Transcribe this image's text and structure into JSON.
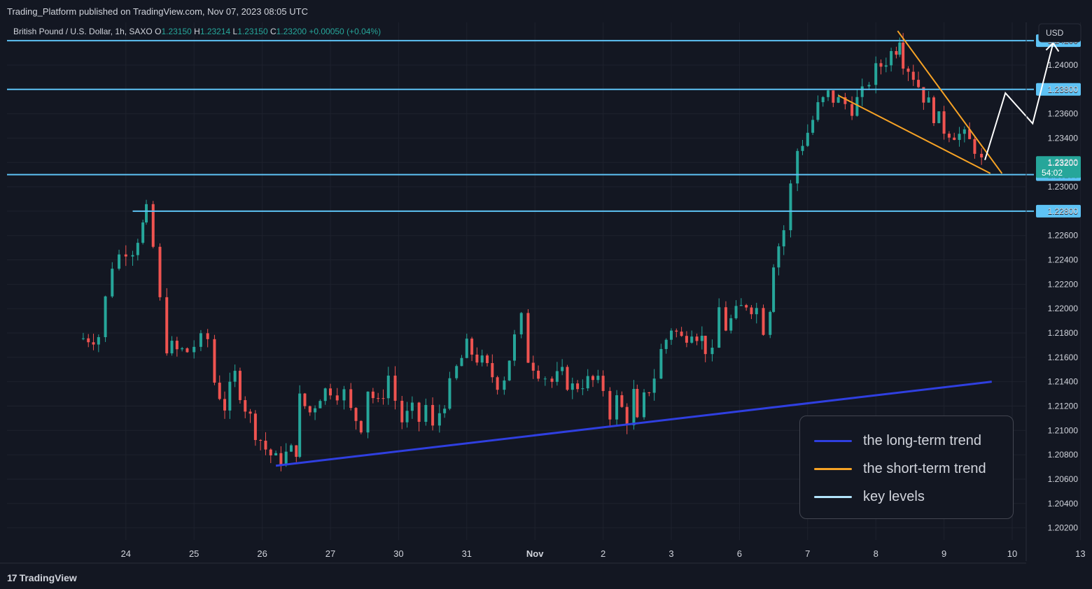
{
  "header": {
    "published": "Trading_Platform published on TradingView.com, Nov 07, 2023 08:05 UTC"
  },
  "symbol_bar": {
    "symbol": "British Pound / U.S. Dollar, 1h, SAXO",
    "o_label": "O",
    "o_value": "1.23150",
    "h_label": "H",
    "h_value": "1.23214",
    "l_label": "L",
    "l_value": "1.23150",
    "c_label": "C",
    "c_value": "1.23200",
    "change": "+0.00050 (+0.04%)"
  },
  "currency_button": "USD",
  "footer": {
    "brand": "TradingView",
    "logo_mark": "17"
  },
  "colors": {
    "background": "#131722",
    "grid": "#1e222d",
    "up": "#26a69a",
    "down": "#ef5350",
    "long_trend": "#2f3fe0",
    "short_trend": "#f7a325",
    "key_level": "#5ec3f5",
    "projection": "#ffffff",
    "text": "#d1d4dc"
  },
  "chart_data": {
    "type": "candlestick",
    "symbol": "GBPUSD",
    "timeframe": "1h",
    "y_axis": {
      "min": 1.201,
      "max": 1.2435,
      "ticks": [
        "1.20200",
        "1.20400",
        "1.20600",
        "1.20800",
        "1.21000",
        "1.21200",
        "1.21400",
        "1.21600",
        "1.21800",
        "1.22000",
        "1.22200",
        "1.22400",
        "1.22600",
        "1.22800",
        "1.23000",
        "1.23200",
        "1.23400",
        "1.23600",
        "1.23800",
        "1.24000",
        "1.24200"
      ]
    },
    "x_axis": {
      "ticks": [
        "24",
        "25",
        "26",
        "27",
        "30",
        "31",
        "Nov",
        "2",
        "3",
        "6",
        "7",
        "8",
        "9",
        "10",
        "13"
      ],
      "bold_ticks": [
        "Nov"
      ]
    },
    "price_path": [
      [
        23.3,
        1.2175
      ],
      [
        23.6,
        1.2178
      ],
      [
        23.8,
        1.2237
      ],
      [
        24.0,
        1.225
      ],
      [
        24.1,
        1.225
      ],
      [
        24.25,
        1.2268
      ],
      [
        24.3,
        1.2278
      ],
      [
        24.4,
        1.225
      ],
      [
        24.5,
        1.2205
      ],
      [
        24.6,
        1.217
      ],
      [
        24.75,
        1.2165
      ],
      [
        24.9,
        1.2165
      ],
      [
        25.0,
        1.217
      ],
      [
        25.2,
        1.2175
      ],
      [
        25.3,
        1.214
      ],
      [
        25.45,
        1.212
      ],
      [
        25.6,
        1.2145
      ],
      [
        25.75,
        1.212
      ],
      [
        25.9,
        1.21
      ],
      [
        26.05,
        1.2085
      ],
      [
        26.2,
        1.2075
      ],
      [
        26.35,
        1.208
      ],
      [
        26.5,
        1.2085
      ],
      [
        26.55,
        1.2125
      ],
      [
        26.7,
        1.2115
      ],
      [
        26.85,
        1.213
      ],
      [
        27.0,
        1.2135
      ],
      [
        27.2,
        1.213
      ],
      [
        27.3,
        1.2115
      ],
      [
        27.45,
        1.2105
      ],
      [
        27.55,
        1.2135
      ],
      [
        27.7,
        1.212
      ],
      [
        27.85,
        1.2145
      ],
      [
        27.95,
        1.2125
      ],
      [
        28.05,
        1.2108
      ],
      [
        28.2,
        1.2115
      ],
      [
        28.3,
        1.2108
      ],
      [
        28.4,
        1.212
      ],
      [
        28.5,
        1.21
      ],
      [
        28.6,
        1.2115
      ],
      [
        28.75,
        1.2135
      ],
      [
        28.85,
        1.215
      ],
      [
        29.0,
        1.2168
      ],
      [
        29.15,
        1.216
      ],
      [
        29.3,
        1.215
      ],
      [
        29.45,
        1.214
      ],
      [
        29.55,
        1.2145
      ],
      [
        29.7,
        1.2175
      ],
      [
        29.8,
        1.219
      ],
      [
        29.9,
        1.216
      ],
      [
        30.05,
        1.215
      ],
      [
        30.25,
        1.214
      ],
      [
        30.4,
        1.2145
      ],
      [
        30.55,
        1.2135
      ],
      [
        30.7,
        1.214
      ],
      [
        30.85,
        1.214
      ],
      [
        31.0,
        1.2135
      ],
      [
        31.1,
        1.2115
      ],
      [
        31.2,
        1.2125
      ],
      [
        31.35,
        1.211
      ],
      [
        31.45,
        1.213
      ],
      [
        31.5,
        1.2105
      ],
      [
        31.6,
        1.2125
      ],
      [
        31.75,
        1.2145
      ],
      [
        31.85,
        1.2165
      ],
      [
        32.0,
        1.2185
      ],
      [
        32.15,
        1.2175
      ],
      [
        32.3,
        1.2185
      ],
      [
        32.45,
        1.2175
      ],
      [
        32.5,
        1.2168
      ],
      [
        32.6,
        1.216
      ],
      [
        32.7,
        1.22
      ],
      [
        32.8,
        1.2185
      ],
      [
        32.95,
        1.2195
      ],
      [
        33.1,
        1.2205
      ],
      [
        33.25,
        1.22
      ],
      [
        33.35,
        1.2185
      ],
      [
        33.45,
        1.2203
      ],
      [
        33.5,
        1.224
      ],
      [
        33.65,
        1.2265
      ],
      [
        33.75,
        1.23
      ],
      [
        33.85,
        1.233
      ],
      [
        34.0,
        1.2345
      ],
      [
        34.15,
        1.2365
      ],
      [
        34.3,
        1.2375
      ],
      [
        34.45,
        1.237
      ],
      [
        34.65,
        1.2366
      ],
      [
        34.8,
        1.2375
      ],
      [
        34.9,
        1.2388
      ],
      [
        35.0,
        1.2395
      ],
      [
        35.15,
        1.2405
      ],
      [
        35.3,
        1.2415
      ],
      [
        35.35,
        1.2425
      ],
      [
        35.4,
        1.2405
      ],
      [
        35.55,
        1.2392
      ],
      [
        35.7,
        1.2375
      ],
      [
        35.85,
        1.236
      ],
      [
        36.0,
        1.2348
      ],
      [
        36.15,
        1.2345
      ],
      [
        36.3,
        1.234
      ],
      [
        36.45,
        1.2333
      ],
      [
        36.55,
        1.232
      ]
    ],
    "key_levels": [
      {
        "price": 1.242,
        "label": "1.24200",
        "x_start": "full"
      },
      {
        "price": 1.238,
        "label": "1.23800",
        "x_start": "full"
      },
      {
        "price": 1.231,
        "label": "1.23100",
        "x_start": "full"
      },
      {
        "price": 1.228,
        "label": "1.22800",
        "x_start": 24.1
      }
    ],
    "current_price": {
      "label": "1.23200",
      "countdown": "54:02",
      "price": 1.232
    },
    "long_term_trend": {
      "from": [
        26.2,
        1.2071
      ],
      "to": [
        36.7,
        1.214
      ]
    },
    "short_term_trend": {
      "upper": {
        "from": [
          35.32,
          1.2428
        ],
        "to": [
          36.85,
          1.2311
        ]
      },
      "lower": {
        "from": [
          34.45,
          1.2375
        ],
        "to": [
          36.68,
          1.2311
        ]
      }
    },
    "projection": [
      [
        36.6,
        1.2322
      ],
      [
        36.9,
        1.2377
      ],
      [
        37.3,
        1.2352
      ],
      [
        37.6,
        1.2418
      ]
    ],
    "legend": [
      {
        "label": "the long-term trend",
        "color_key": "long_trend"
      },
      {
        "label": "the short-term trend",
        "color_key": "short_trend"
      },
      {
        "label": "key levels",
        "color_key": "key_level"
      }
    ]
  }
}
